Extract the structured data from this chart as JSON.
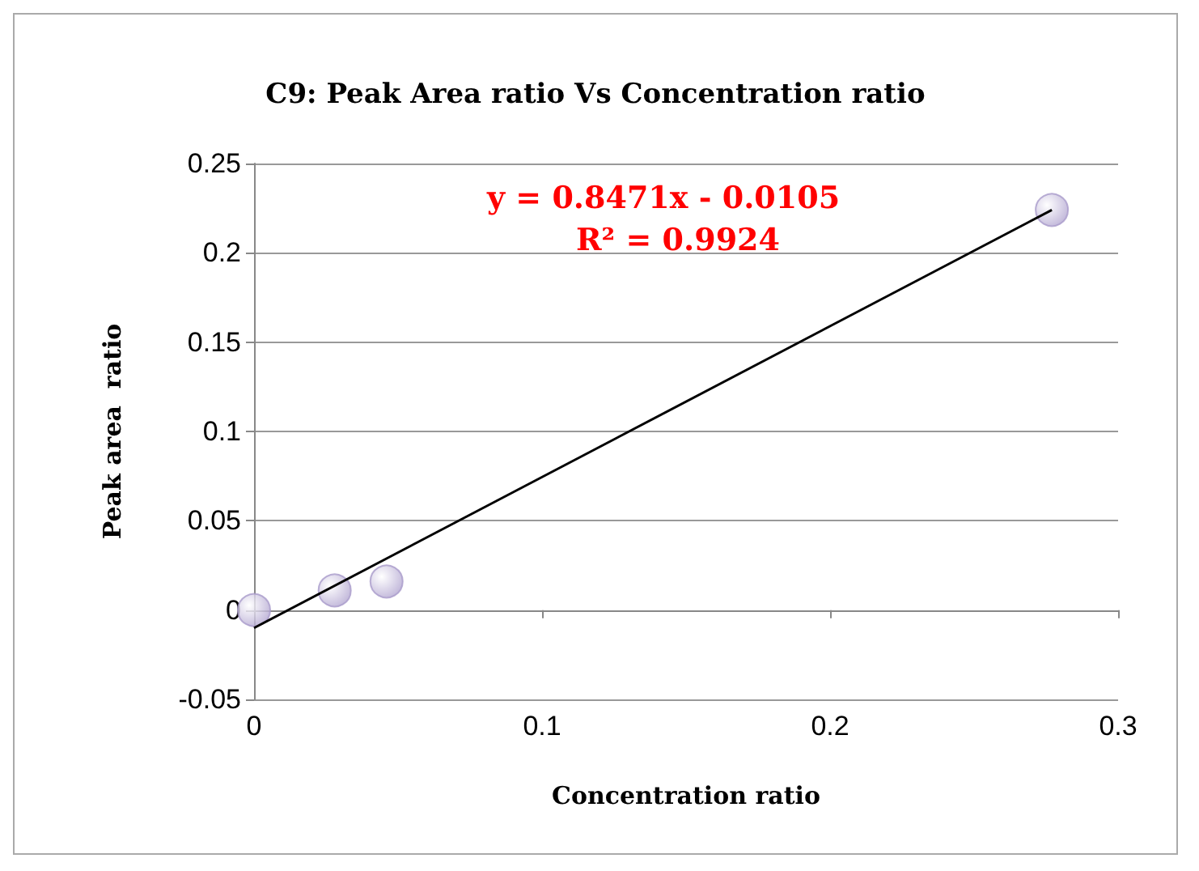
{
  "chart_data": {
    "type": "scatter",
    "title": "C9: Peak Area ratio Vs Concentration ratio",
    "xlabel": "Concentration ratio",
    "ylabel": "Peak area  ratio",
    "annotations": [
      "y = 0.8471x - 0.0105",
      "R² = 0.9924"
    ],
    "series": [
      {
        "color": "#a99bcb",
        "marker": "circle",
        "x": [
          0,
          0.028,
          0.046,
          0.277
        ],
        "values": [
          0,
          0.011,
          0.016,
          0.224
        ]
      },
      {
        "type": "line",
        "color": "#000000",
        "marker": "none",
        "x": [
          0,
          0.277
        ],
        "values": [
          -0.01,
          0.224
        ]
      }
    ],
    "xlim": [
      0,
      0.3
    ],
    "xticks": [
      0,
      0.1,
      0.2,
      0.3
    ],
    "ylim": [
      -0.05,
      0.25
    ],
    "yticks": [
      -0.05,
      0,
      0.05,
      0.1,
      0.15,
      0.2,
      0.25
    ],
    "grid": "y"
  }
}
